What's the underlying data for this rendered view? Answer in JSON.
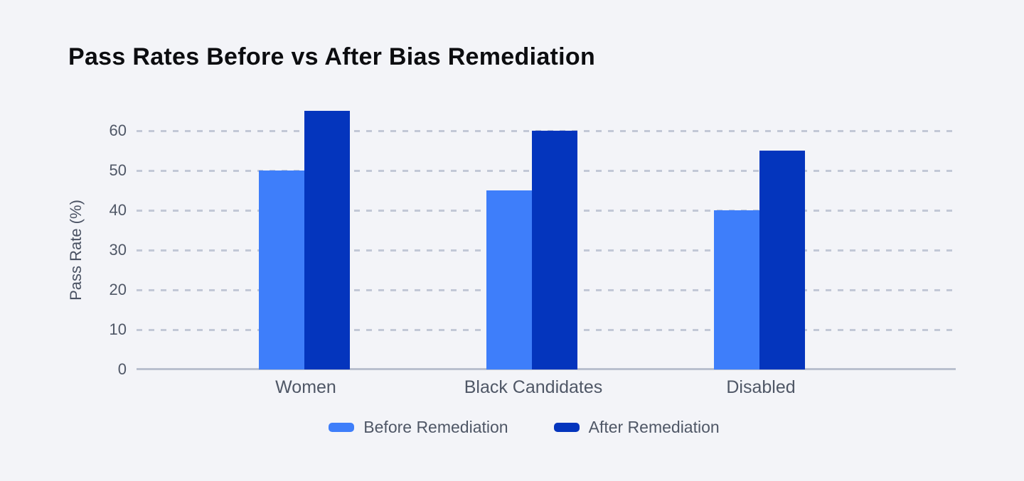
{
  "colors": {
    "background": "#f3f4f8",
    "before_series": "#3E7EFA",
    "after_series": "#0435BD",
    "gridline": "#c2c8d6",
    "axis_line": "#b9c0ce",
    "muted_text": "#4f5766",
    "title_text": "#0c0d10"
  },
  "chart_data": {
    "type": "bar",
    "title": "Pass Rates Before vs After Bias Remediation",
    "categories": [
      "Women",
      "Black Candidates",
      "Disabled"
    ],
    "series": [
      {
        "name": "Before Remediation",
        "color": "#3E7EFA",
        "values": [
          50,
          45,
          40
        ]
      },
      {
        "name": "After Remediation",
        "color": "#0435BD",
        "values": [
          65,
          60,
          55
        ]
      }
    ],
    "xlabel": "",
    "ylabel": "Pass Rate (%)",
    "yticks": [
      0,
      10,
      20,
      30,
      40,
      50,
      60
    ],
    "ylim": [
      0,
      66
    ],
    "grid": "horizontal-dashed",
    "legend_position": "bottom-center"
  }
}
